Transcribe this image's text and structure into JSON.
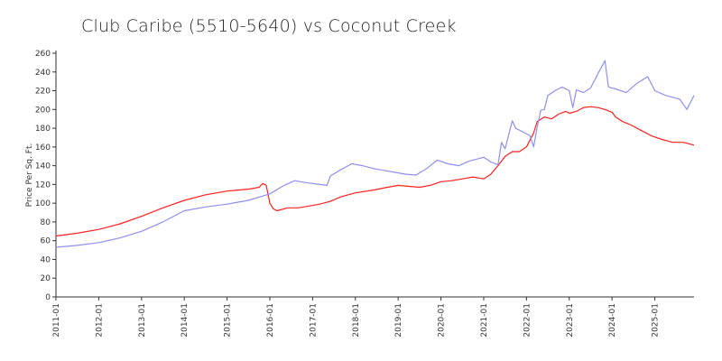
{
  "chart_data": {
    "type": "line",
    "title": "Club Caribe (5510-5640) vs Coconut Creek",
    "xlabel": "",
    "ylabel": "Price Per Sq. Ft.",
    "ylim": [
      0,
      260
    ],
    "yticks": [
      0,
      20,
      40,
      60,
      80,
      100,
      120,
      140,
      160,
      180,
      200,
      220,
      240,
      260
    ],
    "xlim": [
      "2011-01",
      "2025-12"
    ],
    "xticks": [
      "2011-01",
      "2012-01",
      "2013-01",
      "2014-01",
      "2015-01",
      "2016-01",
      "2017-01",
      "2018-01",
      "2019-01",
      "2020-01",
      "2021-01",
      "2022-01",
      "2023-01",
      "2024-01",
      "2025-01"
    ],
    "grid": false,
    "legend": "none",
    "series": [
      {
        "color": "#ff2020",
        "points": [
          [
            "2011-01",
            65
          ],
          [
            "2011-07",
            68
          ],
          [
            "2012-01",
            72
          ],
          [
            "2012-07",
            78
          ],
          [
            "2013-01",
            86
          ],
          [
            "2013-07",
            95
          ],
          [
            "2014-01",
            103
          ],
          [
            "2014-07",
            109
          ],
          [
            "2015-01",
            113
          ],
          [
            "2015-04",
            114
          ],
          [
            "2015-07",
            115
          ],
          [
            "2015-10",
            117
          ],
          [
            "2015-11",
            121
          ],
          [
            "2015-12",
            119
          ],
          [
            "2016-01",
            100
          ],
          [
            "2016-02",
            94
          ],
          [
            "2016-03",
            92
          ],
          [
            "2016-06",
            95
          ],
          [
            "2016-09",
            95
          ],
          [
            "2016-12",
            97
          ],
          [
            "2017-03",
            99
          ],
          [
            "2017-06",
            102
          ],
          [
            "2017-09",
            107
          ],
          [
            "2018-01",
            111
          ],
          [
            "2018-06",
            114
          ],
          [
            "2018-10",
            117
          ],
          [
            "2019-01",
            119
          ],
          [
            "2019-04",
            118
          ],
          [
            "2019-07",
            117
          ],
          [
            "2019-10",
            119
          ],
          [
            "2020-01",
            123
          ],
          [
            "2020-04",
            124
          ],
          [
            "2020-07",
            126
          ],
          [
            "2020-10",
            128
          ],
          [
            "2021-01",
            126
          ],
          [
            "2021-03",
            131
          ],
          [
            "2021-05",
            140
          ],
          [
            "2021-07",
            150
          ],
          [
            "2021-09",
            155
          ],
          [
            "2021-11",
            155
          ],
          [
            "2022-01",
            160
          ],
          [
            "2022-03",
            175
          ],
          [
            "2022-04",
            187
          ],
          [
            "2022-06",
            192
          ],
          [
            "2022-08",
            190
          ],
          [
            "2022-10",
            195
          ],
          [
            "2022-12",
            198
          ],
          [
            "2023-01",
            196
          ],
          [
            "2023-03",
            198
          ],
          [
            "2023-05",
            202
          ],
          [
            "2023-07",
            203
          ],
          [
            "2023-09",
            202
          ],
          [
            "2023-11",
            200
          ],
          [
            "2024-01",
            197
          ],
          [
            "2024-02",
            192
          ],
          [
            "2024-04",
            187
          ],
          [
            "2024-06",
            184
          ],
          [
            "2024-09",
            178
          ],
          [
            "2024-12",
            172
          ],
          [
            "2025-03",
            168
          ],
          [
            "2025-06",
            165
          ],
          [
            "2025-09",
            165
          ],
          [
            "2025-12",
            162
          ]
        ]
      },
      {
        "color": "#8f8fee",
        "points": [
          [
            "2011-01",
            53
          ],
          [
            "2011-07",
            55
          ],
          [
            "2012-01",
            58
          ],
          [
            "2012-07",
            63
          ],
          [
            "2013-01",
            70
          ],
          [
            "2013-07",
            80
          ],
          [
            "2014-01",
            92
          ],
          [
            "2014-07",
            96
          ],
          [
            "2015-01",
            99
          ],
          [
            "2015-07",
            103
          ],
          [
            "2016-01",
            110
          ],
          [
            "2016-05",
            119
          ],
          [
            "2016-08",
            124
          ],
          [
            "2016-11",
            122
          ],
          [
            "2017-03",
            120
          ],
          [
            "2017-05",
            119
          ],
          [
            "2017-06",
            129
          ],
          [
            "2017-09",
            136
          ],
          [
            "2017-12",
            142
          ],
          [
            "2018-03",
            140
          ],
          [
            "2018-06",
            137
          ],
          [
            "2018-09",
            135
          ],
          [
            "2018-12",
            133
          ],
          [
            "2019-03",
            131
          ],
          [
            "2019-06",
            130
          ],
          [
            "2019-09",
            137
          ],
          [
            "2019-12",
            146
          ],
          [
            "2020-03",
            142
          ],
          [
            "2020-06",
            140
          ],
          [
            "2020-09",
            145
          ],
          [
            "2020-12",
            148
          ],
          [
            "2021-01",
            149
          ],
          [
            "2021-03",
            144
          ],
          [
            "2021-05",
            141
          ],
          [
            "2021-06",
            165
          ],
          [
            "2021-07",
            158
          ],
          [
            "2021-09",
            188
          ],
          [
            "2021-10",
            180
          ],
          [
            "2021-12",
            176
          ],
          [
            "2022-02",
            172
          ],
          [
            "2022-03",
            160
          ],
          [
            "2022-04",
            181
          ],
          [
            "2022-05",
            199
          ],
          [
            "2022-06",
            200
          ],
          [
            "2022-07",
            215
          ],
          [
            "2022-09",
            220
          ],
          [
            "2022-11",
            224
          ],
          [
            "2023-01",
            220
          ],
          [
            "2023-02",
            202
          ],
          [
            "2023-03",
            221
          ],
          [
            "2023-05",
            218
          ],
          [
            "2023-07",
            223
          ],
          [
            "2023-09",
            238
          ],
          [
            "2023-11",
            252
          ],
          [
            "2023-12",
            224
          ],
          [
            "2024-02",
            222
          ],
          [
            "2024-05",
            218
          ],
          [
            "2024-08",
            228
          ],
          [
            "2024-11",
            235
          ],
          [
            "2025-01",
            220
          ],
          [
            "2025-04",
            215
          ],
          [
            "2025-08",
            211
          ],
          [
            "2025-10",
            200
          ],
          [
            "2025-12",
            215
          ]
        ]
      }
    ]
  }
}
